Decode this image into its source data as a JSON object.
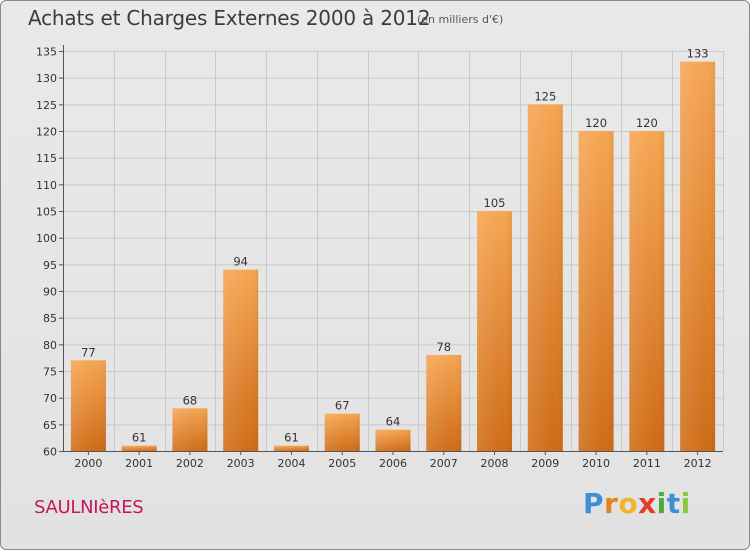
{
  "header": {
    "title": "Achats et Charges Externes 2000 à 2012",
    "subtitle": "(en milliers d'€)"
  },
  "footer": {
    "commune": "SAULNIèRES",
    "logo": {
      "letters": [
        "P",
        "r",
        "o",
        "x",
        "i",
        "t",
        "i"
      ],
      "colors": [
        "#3d8fd6",
        "#e9811e",
        "#f0b52a",
        "#e23c2c",
        "#47ad3c",
        "#3d8fd6",
        "#8cc63f"
      ]
    }
  },
  "chart_data": {
    "type": "bar",
    "title": "Achats et Charges Externes 2000 à 2012",
    "unit": "(en milliers d'€)",
    "categories": [
      "2000",
      "2001",
      "2002",
      "2003",
      "2004",
      "2005",
      "2006",
      "2007",
      "2008",
      "2009",
      "2010",
      "2011",
      "2012"
    ],
    "values": [
      77,
      61,
      68,
      94,
      61,
      67,
      64,
      78,
      105,
      125,
      120,
      120,
      133
    ],
    "ylim": [
      60,
      135
    ],
    "yticks": [
      60,
      65,
      70,
      75,
      80,
      85,
      90,
      95,
      100,
      105,
      110,
      115,
      120,
      125,
      130,
      135
    ],
    "grid": true,
    "bar_color": "#f09a40"
  }
}
